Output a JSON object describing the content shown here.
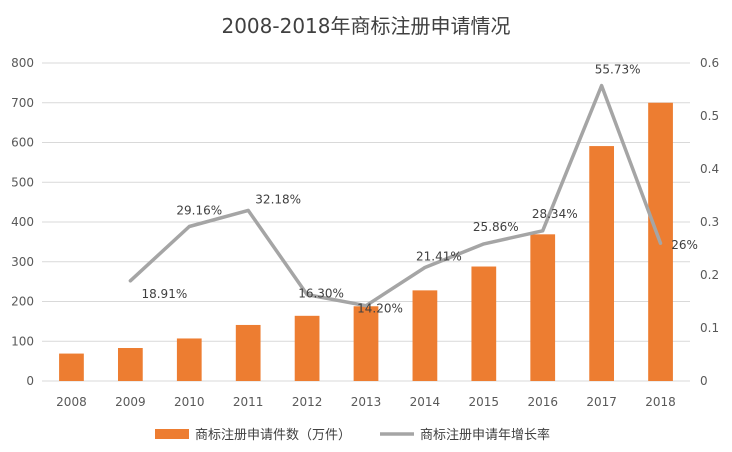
{
  "chart_data": {
    "type": "bar",
    "title": "2008-2018年商标注册申请情况",
    "categories": [
      "2008",
      "2009",
      "2010",
      "2011",
      "2012",
      "2013",
      "2014",
      "2015",
      "2016",
      "2017",
      "2018"
    ],
    "series": [
      {
        "name": "商标注册申请件数（万件）",
        "type": "bar",
        "axis": "left",
        "color": "#ED7D31",
        "values": [
          69,
          83,
          107,
          141,
          164,
          188,
          228,
          288,
          369,
          591,
          700
        ]
      },
      {
        "name": "商标注册申请年增长率",
        "type": "line",
        "axis": "right",
        "color": "#A5A5A5",
        "values": [
          null,
          0.1891,
          0.2916,
          0.3218,
          0.163,
          0.142,
          0.2141,
          0.2586,
          0.2834,
          0.5573,
          0.26
        ],
        "labels": [
          "",
          "18.91%",
          "29.16%",
          "32.18%",
          "16.30%",
          "14.20%",
          "21.41%",
          "25.86%",
          "28.34%",
          "55.73%",
          "26%"
        ]
      }
    ],
    "yleft": {
      "lim": [
        0,
        800
      ],
      "ticks": [
        "0",
        "100",
        "200",
        "300",
        "400",
        "500",
        "600",
        "700",
        "800"
      ]
    },
    "yright": {
      "lim": [
        0,
        0.6
      ],
      "ticks": [
        "0",
        "0.1",
        "0.2",
        "0.3",
        "0.4",
        "0.5",
        "0.6"
      ]
    },
    "grid": true,
    "legend_position": "bottom"
  }
}
